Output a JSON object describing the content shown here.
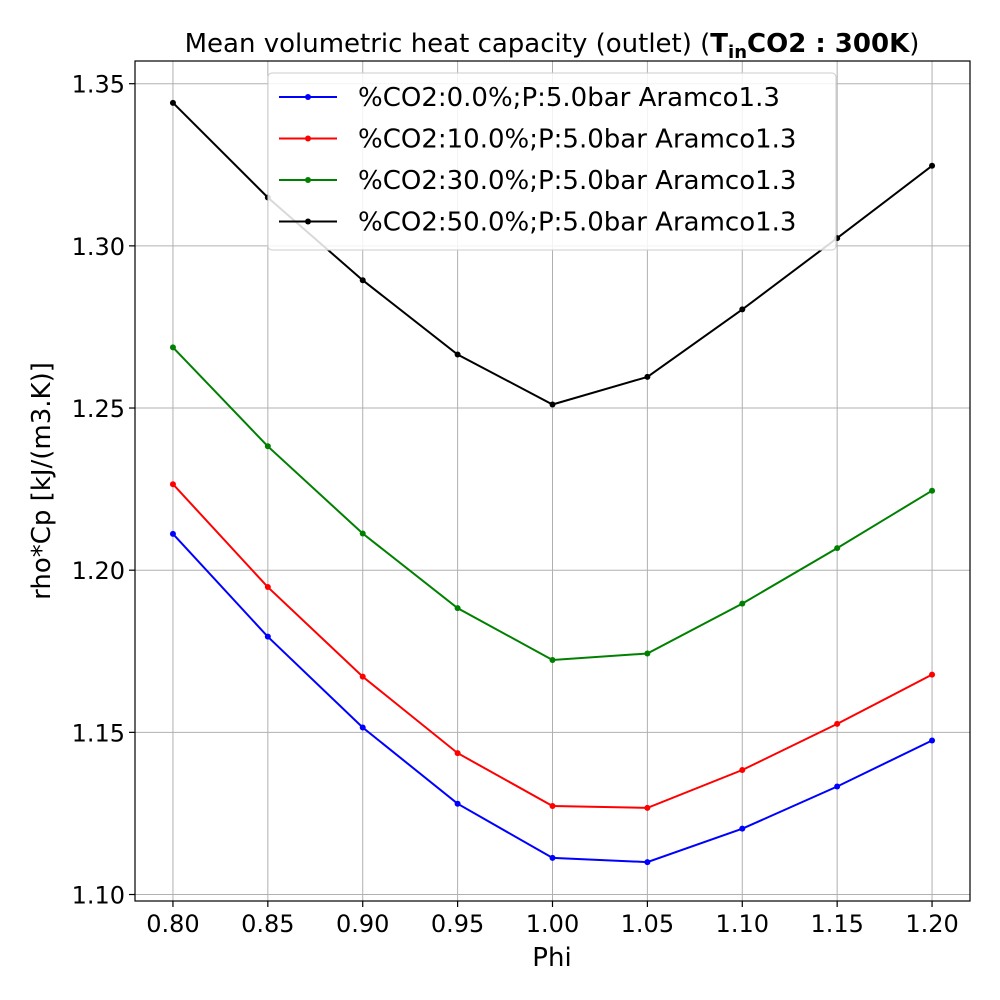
{
  "chart_data": {
    "type": "line",
    "title": {
      "prefix": "Mean volumetric heat capacity (outlet)  (",
      "bold_main": "T",
      "bold_sub": "in",
      "bold_rest": "CO2 : 300K",
      "suffix": ")"
    },
    "xlabel": "Phi",
    "ylabel": "rho*Cp [kJ/(m3.K)]",
    "xlim": [
      0.78,
      1.22
    ],
    "ylim": [
      1.098,
      1.357
    ],
    "xticks": [
      "0.80",
      "0.85",
      "0.90",
      "0.95",
      "1.00",
      "1.05",
      "1.10",
      "1.15",
      "1.20"
    ],
    "yticks": [
      "1.10",
      "1.15",
      "1.20",
      "1.25",
      "1.30",
      "1.35"
    ],
    "grid": true,
    "legend_position": "top-center",
    "x": [
      0.8,
      0.85,
      0.9,
      0.95,
      1.0,
      1.05,
      1.1,
      1.15,
      1.2
    ],
    "series": [
      {
        "name": "%CO2:0.0%;P:5.0bar Aramco1.3",
        "color": "#0000ff",
        "values": [
          1.2112,
          1.1795,
          1.1515,
          1.128,
          1.1113,
          1.11,
          1.1203,
          1.1333,
          1.1475
        ]
      },
      {
        "name": "%CO2:10.0%;P:5.0bar Aramco1.3",
        "color": "#ff0000",
        "values": [
          1.2265,
          1.1948,
          1.1672,
          1.1436,
          1.1273,
          1.1267,
          1.1384,
          1.1526,
          1.1678
        ]
      },
      {
        "name": "%CO2:30.0%;P:5.0bar Aramco1.3",
        "color": "#008000",
        "values": [
          1.2687,
          1.2382,
          1.2113,
          1.1883,
          1.1723,
          1.1743,
          1.1897,
          1.2068,
          1.2245
        ]
      },
      {
        "name": "%CO2:50.0%;P:5.0bar Aramco1.3",
        "color": "#000000",
        "values": [
          1.3441,
          1.3149,
          1.2894,
          1.2665,
          1.2511,
          1.2596,
          1.2804,
          1.3024,
          1.3247
        ]
      }
    ]
  }
}
